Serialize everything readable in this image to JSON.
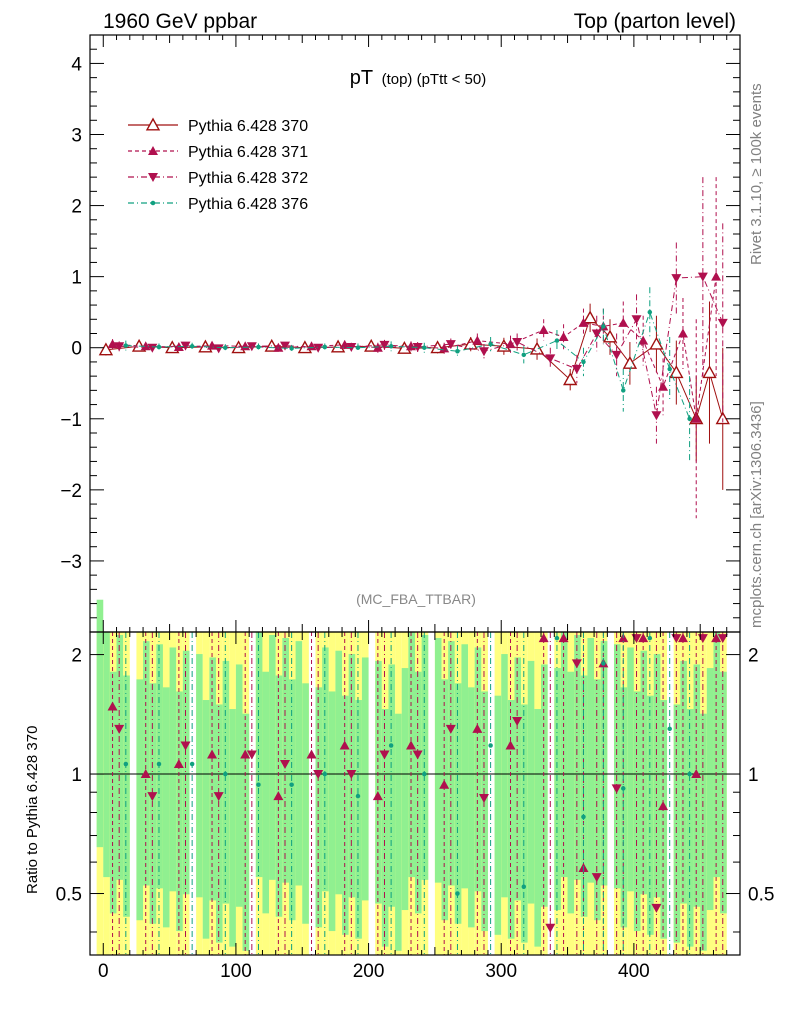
{
  "header": {
    "left": "1960 GeV ppbar",
    "right": "Top (parton level)"
  },
  "side_labels": {
    "rivet": "Rivet 3.1.10, ≥ 100k events",
    "mcplots": "mcplots.cern.ch [arXiv:1306.3436]"
  },
  "chart_data": [
    {
      "type": "scatter",
      "title_main": "pT",
      "title_sub": "(top) (pTtt < 50)",
      "watermark": "(MC_FBA_TTBAR)",
      "xlim": [
        -10,
        480
      ],
      "ylim": [
        -4,
        4.4
      ],
      "x_ticks": [
        0,
        100,
        200,
        300,
        400
      ],
      "y_ticks": [
        -3,
        -2,
        -1,
        0,
        1,
        2,
        3,
        4
      ],
      "y_tick_labels": [
        "−3",
        "−2",
        "−1",
        "0",
        "1",
        "2",
        "3",
        "4"
      ],
      "legend_position": "top-left",
      "series": [
        {
          "name": "Pythia 6.428 370",
          "color": "#a01010",
          "marker": "open-triangle-up",
          "line": "solid",
          "points": [
            [
              2,
              -0.03,
              0.08
            ],
            [
              27,
              0.02,
              0.05
            ],
            [
              52,
              0.0,
              0.05
            ],
            [
              77,
              0.01,
              0.05
            ],
            [
              102,
              0.0,
              0.05
            ],
            [
              127,
              0.02,
              0.05
            ],
            [
              152,
              0.0,
              0.05
            ],
            [
              177,
              0.01,
              0.06
            ],
            [
              202,
              0.02,
              0.07
            ],
            [
              227,
              -0.01,
              0.07
            ],
            [
              252,
              0.0,
              0.08
            ],
            [
              277,
              0.05,
              0.1
            ],
            [
              302,
              0.02,
              0.12
            ],
            [
              327,
              -0.02,
              0.15
            ],
            [
              352,
              -0.45,
              0.15
            ],
            [
              367,
              0.42,
              0.2
            ],
            [
              382,
              0.15,
              0.25
            ],
            [
              397,
              -0.22,
              0.3
            ],
            [
              417,
              0.05,
              0.4
            ],
            [
              432,
              -0.35,
              0.45
            ],
            [
              447,
              -1.0,
              0.6
            ],
            [
              457,
              -0.35,
              1.0
            ],
            [
              467,
              -1.0,
              1.0
            ]
          ]
        },
        {
          "name": "Pythia 6.428 371",
          "color": "#b0104e",
          "marker": "filled-triangle-up",
          "line": "dashed",
          "points": [
            [
              7,
              0.05,
              0.07
            ],
            [
              32,
              0.02,
              0.05
            ],
            [
              57,
              0.01,
              0.05
            ],
            [
              82,
              0.03,
              0.05
            ],
            [
              107,
              0.02,
              0.05
            ],
            [
              132,
              0.0,
              0.05
            ],
            [
              157,
              0.02,
              0.05
            ],
            [
              182,
              0.04,
              0.06
            ],
            [
              207,
              0.0,
              0.07
            ],
            [
              232,
              0.02,
              0.07
            ],
            [
              257,
              -0.01,
              0.08
            ],
            [
              282,
              0.1,
              0.1
            ],
            [
              307,
              0.05,
              0.12
            ],
            [
              332,
              0.25,
              0.15
            ],
            [
              347,
              0.15,
              0.18
            ],
            [
              362,
              0.35,
              0.2
            ],
            [
              377,
              0.3,
              0.25
            ],
            [
              392,
              0.35,
              0.3
            ],
            [
              407,
              0.1,
              0.35
            ],
            [
              422,
              -0.55,
              0.4
            ],
            [
              437,
              0.2,
              0.5
            ],
            [
              447,
              -1.0,
              1.4
            ],
            [
              462,
              1.0,
              1.4
            ]
          ]
        },
        {
          "name": "Pythia 6.428 372",
          "color": "#b0104e",
          "marker": "filled-triangle-down",
          "line": "dashdot",
          "points": [
            [
              12,
              0.02,
              0.07
            ],
            [
              37,
              0.0,
              0.05
            ],
            [
              62,
              0.03,
              0.05
            ],
            [
              87,
              -0.01,
              0.05
            ],
            [
              112,
              0.02,
              0.05
            ],
            [
              137,
              0.03,
              0.05
            ],
            [
              162,
              0.0,
              0.05
            ],
            [
              187,
              0.01,
              0.06
            ],
            [
              212,
              0.04,
              0.07
            ],
            [
              237,
              0.01,
              0.07
            ],
            [
              262,
              0.05,
              0.08
            ],
            [
              287,
              -0.05,
              0.1
            ],
            [
              312,
              0.08,
              0.12
            ],
            [
              337,
              -0.15,
              0.15
            ],
            [
              357,
              -0.3,
              0.2
            ],
            [
              372,
              0.2,
              0.25
            ],
            [
              387,
              -0.1,
              0.3
            ],
            [
              402,
              0.4,
              0.35
            ],
            [
              417,
              -0.95,
              0.4
            ],
            [
              432,
              0.98,
              0.5
            ],
            [
              452,
              1.0,
              1.4
            ],
            [
              467,
              0.35,
              1.4
            ]
          ]
        },
        {
          "name": "Pythia 6.428 376",
          "color": "#10a080",
          "marker": "dot",
          "line": "dashdot",
          "points": [
            [
              17,
              0.03,
              0.07
            ],
            [
              42,
              0.01,
              0.05
            ],
            [
              67,
              0.02,
              0.05
            ],
            [
              92,
              0.0,
              0.05
            ],
            [
              117,
              0.01,
              0.05
            ],
            [
              142,
              -0.01,
              0.05
            ],
            [
              167,
              0.01,
              0.05
            ],
            [
              192,
              0.0,
              0.06
            ],
            [
              217,
              0.02,
              0.07
            ],
            [
              242,
              0.0,
              0.07
            ],
            [
              267,
              -0.05,
              0.08
            ],
            [
              292,
              0.05,
              0.1
            ],
            [
              317,
              -0.1,
              0.12
            ],
            [
              342,
              0.1,
              0.15
            ],
            [
              362,
              -0.2,
              0.2
            ],
            [
              377,
              0.3,
              0.25
            ],
            [
              392,
              -0.6,
              0.3
            ],
            [
              412,
              0.5,
              0.35
            ],
            [
              427,
              -0.3,
              0.45
            ],
            [
              442,
              -1.0,
              0.6
            ]
          ]
        }
      ]
    },
    {
      "type": "scatter",
      "ylabel": "Ratio to Pythia 6.428 370",
      "xlim": [
        -10,
        480
      ],
      "ylim": [
        0.35,
        2.28
      ],
      "x_ticks": [
        0,
        100,
        200,
        300,
        400
      ],
      "y_ticks": [
        0.5,
        1,
        2
      ],
      "y_tick_labels": [
        "0.5",
        "1",
        "2"
      ],
      "reference_line": 1,
      "band_colors": {
        "outer": "#ffff80",
        "inner": "#90f090"
      }
    }
  ]
}
